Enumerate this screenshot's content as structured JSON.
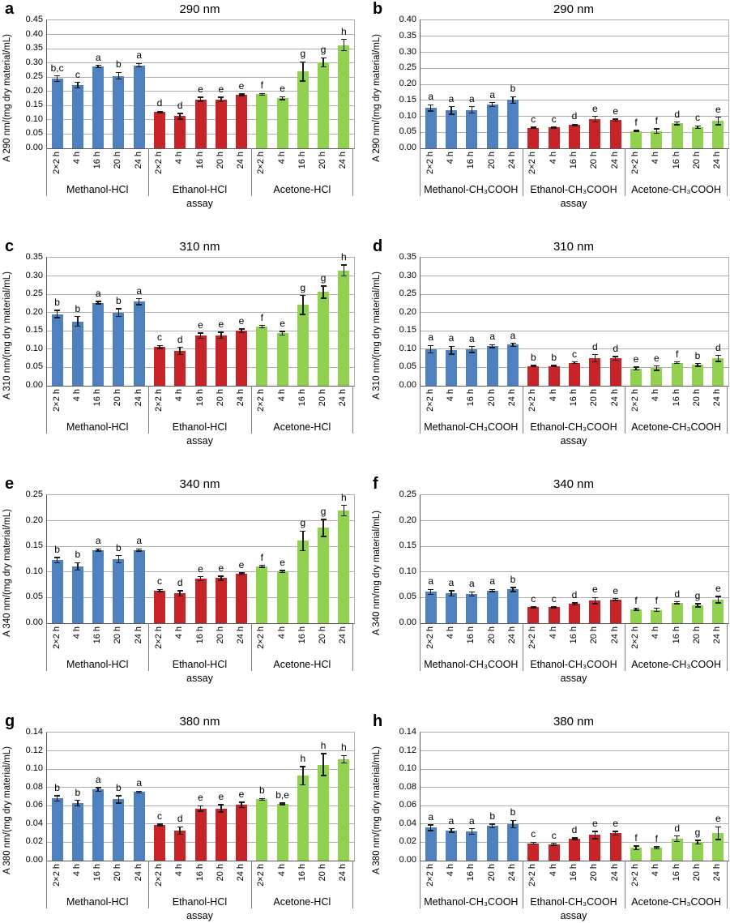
{
  "colors": {
    "blue": "#4E81BD",
    "red": "#C62428",
    "green": "#92D050",
    "gridline": "#B0B0B0",
    "axis": "#595959",
    "separator": "#7F7F7F",
    "error": "#1A1A1A",
    "text": "#000000",
    "background": "#FFFFFF"
  },
  "chart_data": [
    {
      "panel": "a",
      "type": "bar",
      "title": "290 nm",
      "ylabel": "A 290 nm/(mg dry material/mL)",
      "xlabel": "assay",
      "ylim": [
        0,
        0.45
      ],
      "yticks": [
        "0.00",
        "0.05",
        "0.10",
        "0.15",
        "0.20",
        "0.25",
        "0.30",
        "0.35",
        "0.40",
        "0.45"
      ],
      "categories": [
        "2×2 h",
        "4 h",
        "16 h",
        "20 h",
        "24 h"
      ],
      "grid": true,
      "series": [
        {
          "name": "Methanol-HCl",
          "color": "blue",
          "values": [
            0.245,
            0.222,
            0.288,
            0.255,
            0.292
          ],
          "errors": [
            0.01,
            0.01,
            0.004,
            0.012,
            0.006
          ],
          "letters": [
            "b,c",
            "c",
            "a",
            "b",
            "a"
          ]
        },
        {
          "name": "Ethanol-HCl",
          "color": "red",
          "values": [
            0.128,
            0.113,
            0.172,
            0.172,
            0.188
          ],
          "errors": [
            0.002,
            0.01,
            0.007,
            0.008,
            0.003
          ],
          "letters": [
            "d",
            "d",
            "e",
            "e",
            "e"
          ]
        },
        {
          "name": "Acetone-HCl",
          "color": "green",
          "values": [
            0.19,
            0.176,
            0.27,
            0.302,
            0.363
          ],
          "errors": [
            0.003,
            0.005,
            0.034,
            0.016,
            0.02
          ],
          "letters": [
            "f",
            "e",
            "g",
            "g",
            "h"
          ]
        }
      ]
    },
    {
      "panel": "b",
      "type": "bar",
      "title": "290 nm",
      "ylabel": "A 290 nm/(mg dry material/mL)",
      "xlabel": "assay",
      "ylim": [
        0,
        0.4
      ],
      "yticks": [
        "0.00",
        "0.05",
        "0.10",
        "0.15",
        "0.20",
        "0.25",
        "0.30",
        "0.35",
        "0.40"
      ],
      "categories": [
        "2×2 h",
        "4 h",
        "16 h",
        "20 h",
        "24 h"
      ],
      "grid": true,
      "series": [
        {
          "name": "Methanol-CH₃COOH",
          "color": "blue",
          "values": [
            0.126,
            0.118,
            0.12,
            0.137,
            0.151
          ],
          "errors": [
            0.01,
            0.012,
            0.01,
            0.006,
            0.01
          ],
          "letters": [
            "a",
            "a",
            "a",
            "a",
            "b"
          ]
        },
        {
          "name": "Ethanol-CH₃COOH",
          "color": "red",
          "values": [
            0.064,
            0.065,
            0.073,
            0.091,
            0.088
          ],
          "errors": [
            0.002,
            0.002,
            0.002,
            0.009,
            0.003
          ],
          "letters": [
            "c",
            "c",
            "d",
            "e",
            "e"
          ]
        },
        {
          "name": "Acetone-CH₃COOH",
          "color": "green",
          "values": [
            0.054,
            0.054,
            0.078,
            0.066,
            0.085
          ],
          "errors": [
            0.002,
            0.007,
            0.004,
            0.004,
            0.012
          ],
          "letters": [
            "f",
            "f",
            "d",
            "c",
            "e"
          ]
        }
      ]
    },
    {
      "panel": "c",
      "type": "bar",
      "title": "310 nm",
      "ylabel": "A 310 nm/(mg dry material/mL)",
      "xlabel": "assay",
      "ylim": [
        0,
        0.35
      ],
      "yticks": [
        "0.00",
        "0.05",
        "0.10",
        "0.15",
        "0.20",
        "0.25",
        "0.30",
        "0.35"
      ],
      "categories": [
        "2×2 h",
        "4 h",
        "16 h",
        "20 h",
        "24 h"
      ],
      "grid": true,
      "series": [
        {
          "name": "Methanol-HCl",
          "color": "blue",
          "values": [
            0.196,
            0.176,
            0.227,
            0.2,
            0.23
          ],
          "errors": [
            0.01,
            0.013,
            0.003,
            0.01,
            0.008
          ],
          "letters": [
            "b",
            "b",
            "a",
            "b",
            "a"
          ]
        },
        {
          "name": "Ethanol-HCl",
          "color": "red",
          "values": [
            0.106,
            0.095,
            0.137,
            0.138,
            0.15
          ],
          "errors": [
            0.004,
            0.01,
            0.007,
            0.008,
            0.005
          ],
          "letters": [
            "c",
            "d",
            "e",
            "e",
            "e"
          ]
        },
        {
          "name": "Acetone-HCl",
          "color": "green",
          "values": [
            0.162,
            0.144,
            0.221,
            0.256,
            0.315
          ],
          "errors": [
            0.003,
            0.005,
            0.026,
            0.017,
            0.015
          ],
          "letters": [
            "f",
            "e",
            "g",
            "g",
            "h"
          ]
        }
      ]
    },
    {
      "panel": "d",
      "type": "bar",
      "title": "310 nm",
      "ylabel": "A 310 nm/(mg dry material/mL)",
      "xlabel": "assay",
      "ylim": [
        0,
        0.35
      ],
      "yticks": [
        "0.00",
        "0.05",
        "0.10",
        "0.15",
        "0.20",
        "0.25",
        "0.30",
        "0.35"
      ],
      "categories": [
        "2×2 h",
        "4 h",
        "16 h",
        "20 h",
        "24 h"
      ],
      "grid": true,
      "series": [
        {
          "name": "Methanol-CH₃COOH",
          "color": "blue",
          "values": [
            0.1,
            0.097,
            0.099,
            0.108,
            0.112
          ],
          "errors": [
            0.01,
            0.011,
            0.008,
            0.004,
            0.004
          ],
          "letters": [
            "a",
            "a",
            "a",
            "a",
            "a"
          ]
        },
        {
          "name": "Ethanol-CH₃COOH",
          "color": "red",
          "values": [
            0.054,
            0.054,
            0.063,
            0.075,
            0.075
          ],
          "errors": [
            0.002,
            0.002,
            0.002,
            0.01,
            0.005
          ],
          "letters": [
            "b",
            "b",
            "c",
            "d",
            "d"
          ]
        },
        {
          "name": "Acetone-CH₃COOH",
          "color": "green",
          "values": [
            0.047,
            0.048,
            0.063,
            0.057,
            0.075
          ],
          "errors": [
            0.004,
            0.006,
            0.002,
            0.004,
            0.008
          ],
          "letters": [
            "e",
            "e",
            "f",
            "b",
            "d"
          ]
        }
      ]
    },
    {
      "panel": "e",
      "type": "bar",
      "title": "340 nm",
      "ylabel": "A 340 nm/(mg dry material/mL)",
      "xlabel": "assay",
      "ylim": [
        0,
        0.25
      ],
      "yticks": [
        "0.00",
        "0.05",
        "0.10",
        "0.15",
        "0.20",
        "0.25"
      ],
      "categories": [
        "2×2 h",
        "4 h",
        "16 h",
        "20 h",
        "24 h"
      ],
      "grid": true,
      "series": [
        {
          "name": "Methanol-HCl",
          "color": "blue",
          "values": [
            0.123,
            0.111,
            0.143,
            0.125,
            0.143
          ],
          "errors": [
            0.005,
            0.007,
            0.002,
            0.007,
            0.002
          ],
          "letters": [
            "b",
            "b",
            "a",
            "b",
            "a"
          ]
        },
        {
          "name": "Ethanol-HCl",
          "color": "red",
          "values": [
            0.064,
            0.058,
            0.087,
            0.088,
            0.096
          ],
          "errors": [
            0.002,
            0.005,
            0.004,
            0.004,
            0.002
          ],
          "letters": [
            "c",
            "d",
            "e",
            "e",
            "e"
          ]
        },
        {
          "name": "Acetone-HCl",
          "color": "green",
          "values": [
            0.111,
            0.101,
            0.161,
            0.186,
            0.22
          ],
          "errors": [
            0.002,
            0.002,
            0.019,
            0.017,
            0.01
          ],
          "letters": [
            "f",
            "e",
            "g",
            "g",
            "h"
          ]
        }
      ]
    },
    {
      "panel": "f",
      "type": "bar",
      "title": "340 nm",
      "ylabel": "A 340 nm/mg dry material/mL)",
      "xlabel": "assay",
      "ylim": [
        0,
        0.25
      ],
      "yticks": [
        "0.00",
        "0.05",
        "0.10",
        "0.15",
        "0.20",
        "0.25"
      ],
      "categories": [
        "2×2 h",
        "4 h",
        "16 h",
        "20 h",
        "24 h"
      ],
      "grid": true,
      "series": [
        {
          "name": "Methanol-CH₃COOH",
          "color": "blue",
          "values": [
            0.061,
            0.058,
            0.057,
            0.064,
            0.066
          ],
          "errors": [
            0.005,
            0.005,
            0.004,
            0.002,
            0.004
          ],
          "letters": [
            "a",
            "a",
            "a",
            "a",
            "b"
          ]
        },
        {
          "name": "Ethanol-CH₃COOH",
          "color": "red",
          "values": [
            0.031,
            0.031,
            0.038,
            0.044,
            0.046
          ],
          "errors": [
            0.001,
            0.001,
            0.002,
            0.006,
            0.002
          ],
          "letters": [
            "c",
            "c",
            "d",
            "e",
            "e"
          ]
        },
        {
          "name": "Acetone-CH₃COOH",
          "color": "green",
          "values": [
            0.027,
            0.026,
            0.04,
            0.035,
            0.046
          ],
          "errors": [
            0.002,
            0.003,
            0.002,
            0.003,
            0.006
          ],
          "letters": [
            "f",
            "f",
            "d",
            "g",
            "e"
          ]
        }
      ]
    },
    {
      "panel": "g",
      "type": "bar",
      "title": "380 nm",
      "ylabel": "A 380 nm/(mg dry material/mL)",
      "xlabel": "assay",
      "ylim": [
        0,
        0.14
      ],
      "yticks": [
        "0.00",
        "0.02",
        "0.04",
        "0.06",
        "0.08",
        "0.10",
        "0.12",
        "0.14"
      ],
      "categories": [
        "2×2 h",
        "4 h",
        "16 h",
        "20 h",
        "24 h"
      ],
      "grid": true,
      "series": [
        {
          "name": "Methanol-HCl",
          "color": "blue",
          "values": [
            0.068,
            0.063,
            0.078,
            0.067,
            0.075
          ],
          "errors": [
            0.003,
            0.003,
            0.002,
            0.004,
            0.001
          ],
          "letters": [
            "b",
            "b",
            "a",
            "b",
            "a"
          ]
        },
        {
          "name": "Ethanol-HCl",
          "color": "red",
          "values": [
            0.039,
            0.033,
            0.057,
            0.057,
            0.061
          ],
          "errors": [
            0.001,
            0.004,
            0.003,
            0.004,
            0.003
          ],
          "letters": [
            "c",
            "d",
            "e",
            "e",
            "e"
          ]
        },
        {
          "name": "Acetone-HCl",
          "color": "green",
          "values": [
            0.067,
            0.062,
            0.093,
            0.105,
            0.111
          ],
          "errors": [
            0.001,
            0.001,
            0.01,
            0.012,
            0.004
          ],
          "letters": [
            "b",
            "b,e",
            "h",
            "h",
            "h"
          ]
        }
      ]
    },
    {
      "panel": "h",
      "type": "bar",
      "title": "380 nm",
      "ylabel": "A 380 nm/(mg dry material/mL)",
      "xlabel": "assay",
      "ylim": [
        0,
        0.14
      ],
      "yticks": [
        "0.00",
        "0.02",
        "0.04",
        "0.06",
        "0.08",
        "0.10",
        "0.12",
        "0.14"
      ],
      "categories": [
        "2×2 h",
        "4 h",
        "16 h",
        "20 h",
        "24 h"
      ],
      "grid": true,
      "series": [
        {
          "name": "Methanol-CH₃COOH",
          "color": "blue",
          "values": [
            0.036,
            0.033,
            0.032,
            0.038,
            0.04
          ],
          "errors": [
            0.003,
            0.002,
            0.003,
            0.002,
            0.004
          ],
          "letters": [
            "a",
            "a",
            "a",
            "b",
            "b"
          ]
        },
        {
          "name": "Ethanol-CH₃COOH",
          "color": "red",
          "values": [
            0.019,
            0.018,
            0.024,
            0.028,
            0.03
          ],
          "errors": [
            0.001,
            0.001,
            0.001,
            0.004,
            0.002
          ],
          "letters": [
            "c",
            "c",
            "d",
            "e",
            "e"
          ]
        },
        {
          "name": "Acetone-CH₃COOH",
          "color": "green",
          "values": [
            0.014,
            0.014,
            0.024,
            0.02,
            0.03
          ],
          "errors": [
            0.002,
            0.001,
            0.003,
            0.002,
            0.007
          ],
          "letters": [
            "f",
            "f",
            "d",
            "g",
            "e"
          ]
        }
      ]
    }
  ]
}
